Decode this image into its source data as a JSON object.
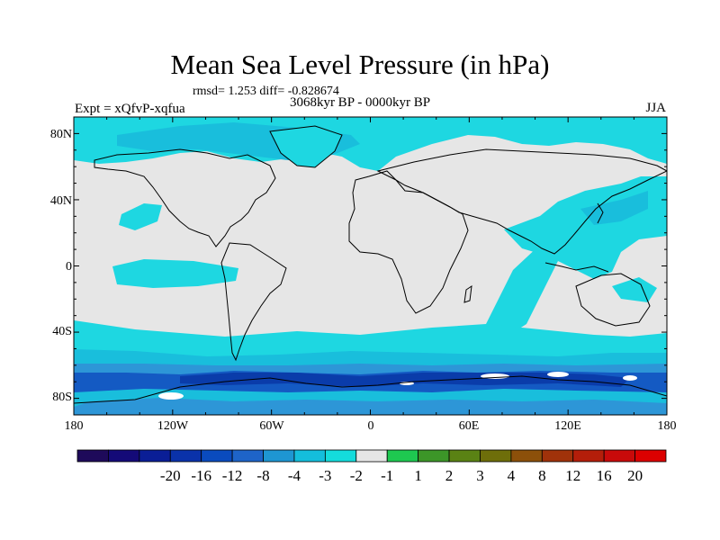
{
  "title": "Mean Sea Level Pressure (in hPa)",
  "stats": "rmsd= 1.253 diff= -0.828674",
  "period": "3068kyr BP - 0000kyr BP",
  "expt": "Expt = xQfvP-xqfua",
  "season": "JJA",
  "lat_labels": [
    "80N",
    "40N",
    "0",
    "40S",
    "80S"
  ],
  "lon_labels": [
    "180",
    "120W",
    "60W",
    "0",
    "60E",
    "120E",
    "180"
  ],
  "colorbar": {
    "colors": [
      "#1e0a5a",
      "#140a78",
      "#0a1e96",
      "#0a32aa",
      "#0a4bbe",
      "#1e64c8",
      "#1e96d2",
      "#14bedc",
      "#14dcdc",
      "#e6e6e6",
      "#1ec850",
      "#3c9628",
      "#5a8214",
      "#6e6e0a",
      "#8c500a",
      "#a0320a",
      "#b41e0a",
      "#c80a0a",
      "#dc0000"
    ],
    "tick_labels": [
      "-20",
      "-16",
      "-12",
      "-8",
      "-4",
      "-3",
      "-2",
      "-1",
      "1",
      "2",
      "3",
      "4",
      "8",
      "12",
      "16",
      "20"
    ]
  },
  "colors": {
    "land_bg": "#e6e6e6",
    "light_cyan": "#1ed7e1",
    "mid_cyan": "#19bedc",
    "blue": "#2d96d7",
    "dark_blue": "#145ac3",
    "navy": "#0a3caa",
    "coast": "#000000"
  }
}
